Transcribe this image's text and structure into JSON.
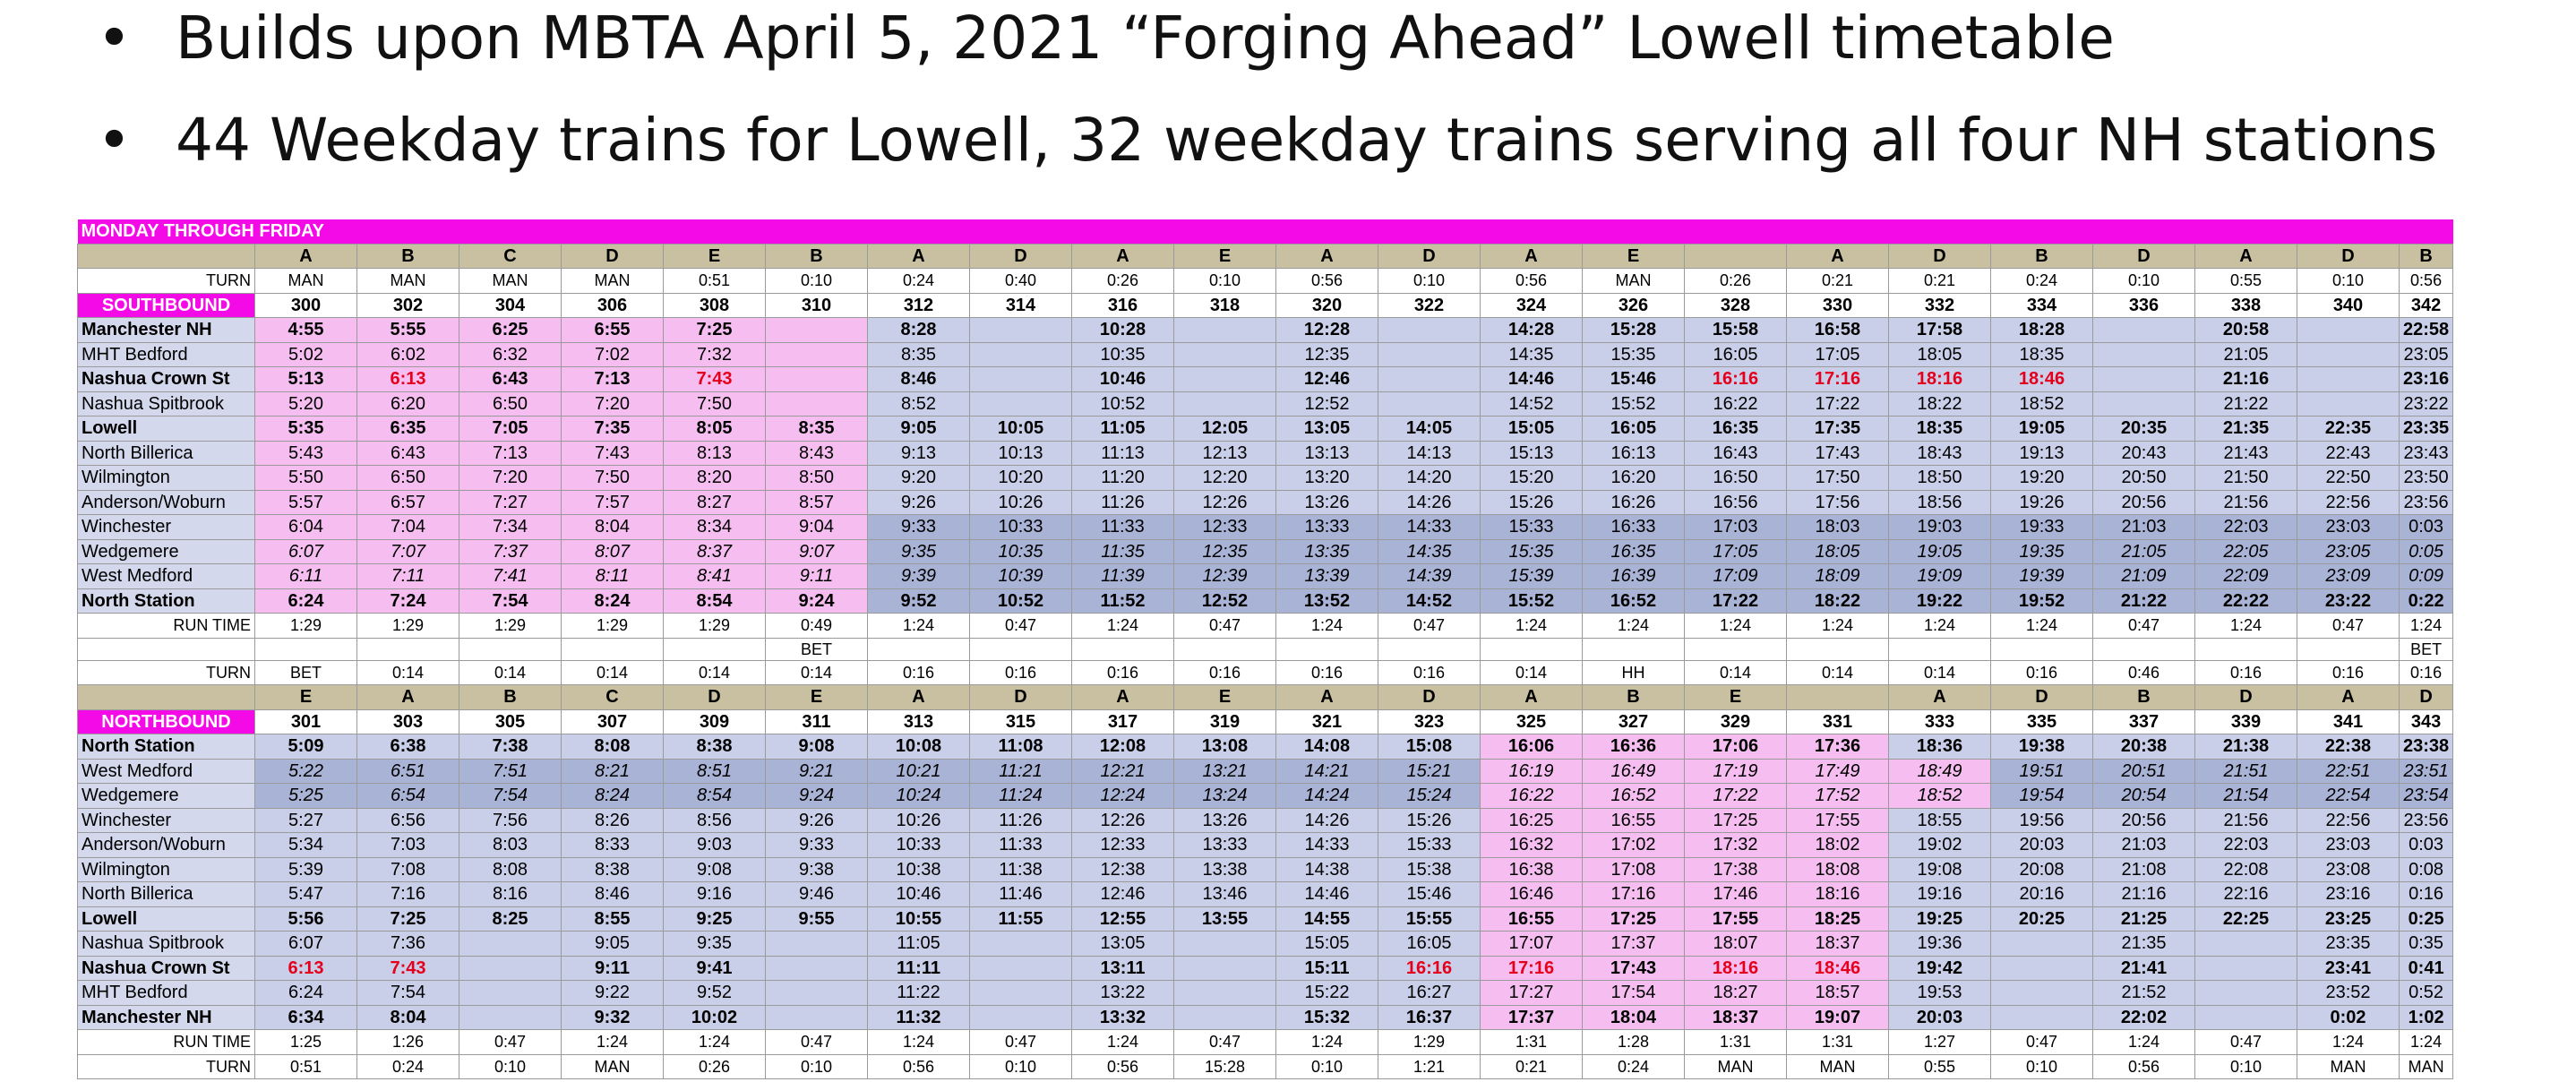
{
  "bullets": [
    {
      "symbol": "•",
      "text": "Builds upon MBTA April 5, 2021 “Forging Ahead” Lowell timetable"
    },
    {
      "symbol": "•",
      "text": "44 Weekday trains for Lowell, 32 weekday trains serving all four NH stations"
    }
  ],
  "timetable": {
    "header": "MONDAY THROUGH FRIDAY",
    "colors": {
      "banner": "#f40ae6",
      "letters": "#c8c0a0",
      "pink": "#f6bef0",
      "light_blue": "#c9cfe8",
      "blue": "#a9b3d6",
      "red_time": "#e4001c"
    },
    "rows": [
      {
        "type": "letters",
        "cells": [
          "",
          "A",
          "B",
          "C",
          "D",
          "E",
          "B",
          "A",
          "D",
          "A",
          "E",
          "A",
          "D",
          "A",
          "E",
          "",
          "A",
          "D",
          "B",
          "D",
          "A",
          "D",
          "B"
        ]
      },
      {
        "type": "turn",
        "cells": [
          "TURN",
          "MAN",
          "MAN",
          "MAN",
          "MAN",
          "0:51",
          "0:10",
          "0:24",
          "0:40",
          "0:26",
          "0:10",
          "0:56",
          "0:10",
          "0:56",
          "MAN",
          "0:26",
          "0:21",
          "0:21",
          "0:24",
          "0:10",
          "0:55",
          "0:10",
          "0:56"
        ]
      },
      {
        "type": "dir",
        "cells": [
          "SOUTHBOUND",
          "300",
          "302",
          "304",
          "306",
          "308",
          "310",
          "312",
          "314",
          "316",
          "318",
          "320",
          "322",
          "324",
          "326",
          "328",
          "330",
          "332",
          "334",
          "336",
          "338",
          "340",
          "342"
        ]
      },
      {
        "type": "st",
        "bold": true,
        "cells": [
          "Manchester NH",
          "4:55",
          "5:55",
          "6:25",
          "6:55",
          "7:25",
          "",
          "8:28",
          "",
          "10:28",
          "",
          "12:28",
          "",
          "14:28",
          "15:28",
          "15:58",
          "16:58",
          "17:58",
          "18:28",
          "",
          "20:58",
          "",
          "22:58"
        ]
      },
      {
        "type": "st",
        "cells": [
          "MHT Bedford",
          "5:02",
          "6:02",
          "6:32",
          "7:02",
          "7:32",
          "",
          "8:35",
          "",
          "10:35",
          "",
          "12:35",
          "",
          "14:35",
          "15:35",
          "16:05",
          "17:05",
          "18:05",
          "18:35",
          "",
          "21:05",
          "",
          "23:05"
        ]
      },
      {
        "type": "st",
        "bold": true,
        "cells": [
          "Nashua Crown St",
          "5:13",
          "6:13",
          "6:43",
          "7:13",
          "7:43",
          "",
          "8:46",
          "",
          "10:46",
          "",
          "12:46",
          "",
          "14:46",
          "15:46",
          "16:16",
          "17:16",
          "18:16",
          "18:46",
          "",
          "21:16",
          "",
          "23:16"
        ]
      },
      {
        "type": "st",
        "cells": [
          "Nashua Spitbrook",
          "5:20",
          "6:20",
          "6:50",
          "7:20",
          "7:50",
          "",
          "8:52",
          "",
          "10:52",
          "",
          "12:52",
          "",
          "14:52",
          "15:52",
          "16:22",
          "17:22",
          "18:22",
          "18:52",
          "",
          "21:22",
          "",
          "23:22"
        ]
      },
      {
        "type": "st",
        "bold": true,
        "cells": [
          "Lowell",
          "5:35",
          "6:35",
          "7:05",
          "7:35",
          "8:05",
          "8:35",
          "9:05",
          "10:05",
          "11:05",
          "12:05",
          "13:05",
          "14:05",
          "15:05",
          "16:05",
          "16:35",
          "17:35",
          "18:35",
          "19:05",
          "20:35",
          "21:35",
          "22:35",
          "23:35"
        ]
      },
      {
        "type": "st",
        "cells": [
          "North Billerica",
          "5:43",
          "6:43",
          "7:13",
          "7:43",
          "8:13",
          "8:43",
          "9:13",
          "10:13",
          "11:13",
          "12:13",
          "13:13",
          "14:13",
          "15:13",
          "16:13",
          "16:43",
          "17:43",
          "18:43",
          "19:13",
          "20:43",
          "21:43",
          "22:43",
          "23:43"
        ]
      },
      {
        "type": "st",
        "cells": [
          "Wilmington",
          "5:50",
          "6:50",
          "7:20",
          "7:50",
          "8:20",
          "8:50",
          "9:20",
          "10:20",
          "11:20",
          "12:20",
          "13:20",
          "14:20",
          "15:20",
          "16:20",
          "16:50",
          "17:50",
          "18:50",
          "19:20",
          "20:50",
          "21:50",
          "22:50",
          "23:50"
        ]
      },
      {
        "type": "st",
        "cells": [
          "Anderson/Woburn",
          "5:57",
          "6:57",
          "7:27",
          "7:57",
          "8:27",
          "8:57",
          "9:26",
          "10:26",
          "11:26",
          "12:26",
          "13:26",
          "14:26",
          "15:26",
          "16:26",
          "16:56",
          "17:56",
          "18:56",
          "19:26",
          "20:56",
          "21:56",
          "22:56",
          "23:56"
        ]
      },
      {
        "type": "st",
        "cells": [
          "Winchester",
          "6:04",
          "7:04",
          "7:34",
          "8:04",
          "8:34",
          "9:04",
          "9:33",
          "10:33",
          "11:33",
          "12:33",
          "13:33",
          "14:33",
          "15:33",
          "16:33",
          "17:03",
          "18:03",
          "19:03",
          "19:33",
          "21:03",
          "22:03",
          "23:03",
          "0:03"
        ]
      },
      {
        "type": "st",
        "italic": true,
        "cells": [
          "Wedgemere",
          "6:07",
          "7:07",
          "7:37",
          "8:07",
          "8:37",
          "9:07",
          "9:35",
          "10:35",
          "11:35",
          "12:35",
          "13:35",
          "14:35",
          "15:35",
          "16:35",
          "17:05",
          "18:05",
          "19:05",
          "19:35",
          "21:05",
          "22:05",
          "23:05",
          "0:05"
        ]
      },
      {
        "type": "st",
        "italic": true,
        "cells": [
          "West Medford",
          "6:11",
          "7:11",
          "7:41",
          "8:11",
          "8:41",
          "9:11",
          "9:39",
          "10:39",
          "11:39",
          "12:39",
          "13:39",
          "14:39",
          "15:39",
          "16:39",
          "17:09",
          "18:09",
          "19:09",
          "19:39",
          "21:09",
          "22:09",
          "23:09",
          "0:09"
        ]
      },
      {
        "type": "st",
        "bold": true,
        "cells": [
          "North Station",
          "6:24",
          "7:24",
          "7:54",
          "8:24",
          "8:54",
          "9:24",
          "9:52",
          "10:52",
          "11:52",
          "12:52",
          "13:52",
          "14:52",
          "15:52",
          "16:52",
          "17:22",
          "18:22",
          "19:22",
          "19:52",
          "21:22",
          "22:22",
          "23:22",
          "0:22"
        ]
      },
      {
        "type": "runtime",
        "cells": [
          "RUN TIME",
          "1:29",
          "1:29",
          "1:29",
          "1:29",
          "1:29",
          "0:49",
          "1:24",
          "0:47",
          "1:24",
          "0:47",
          "1:24",
          "0:47",
          "1:24",
          "1:24",
          "1:24",
          "1:24",
          "1:24",
          "1:24",
          "0:47",
          "1:24",
          "0:47",
          "1:24"
        ]
      },
      {
        "type": "spacer",
        "cells": [
          "",
          "",
          "",
          "",
          "",
          "",
          "BET",
          "",
          "",
          "",
          "",
          "",
          "",
          "",
          "",
          "",
          "",
          "",
          "",
          "",
          "",
          "",
          "BET"
        ]
      },
      {
        "type": "turn",
        "cells": [
          "TURN",
          "BET",
          "0:14",
          "0:14",
          "0:14",
          "0:14",
          "0:14",
          "0:16",
          "0:16",
          "0:16",
          "0:16",
          "0:16",
          "0:16",
          "0:14",
          "HH",
          "0:14",
          "0:14",
          "0:14",
          "0:16",
          "0:46",
          "0:16",
          "0:16",
          "0:16"
        ]
      },
      {
        "type": "letters",
        "cells": [
          "",
          "E",
          "A",
          "B",
          "C",
          "D",
          "E",
          "A",
          "D",
          "A",
          "E",
          "A",
          "D",
          "A",
          "B",
          "E",
          "",
          "A",
          "D",
          "B",
          "D",
          "A",
          "D"
        ]
      },
      {
        "type": "dir",
        "cells": [
          "NORTHBOUND",
          "301",
          "303",
          "305",
          "307",
          "309",
          "311",
          "313",
          "315",
          "317",
          "319",
          "321",
          "323",
          "325",
          "327",
          "329",
          "331",
          "333",
          "335",
          "337",
          "339",
          "341",
          "343"
        ]
      },
      {
        "type": "st",
        "bold": true,
        "cells": [
          "North Station",
          "5:09",
          "6:38",
          "7:38",
          "8:08",
          "8:38",
          "9:08",
          "10:08",
          "11:08",
          "12:08",
          "13:08",
          "14:08",
          "15:08",
          "16:06",
          "16:36",
          "17:06",
          "17:36",
          "18:36",
          "19:38",
          "20:38",
          "21:38",
          "22:38",
          "23:38"
        ]
      },
      {
        "type": "st",
        "italic": true,
        "cells": [
          "West Medford",
          "5:22",
          "6:51",
          "7:51",
          "8:21",
          "8:51",
          "9:21",
          "10:21",
          "11:21",
          "12:21",
          "13:21",
          "14:21",
          "15:21",
          "16:19",
          "16:49",
          "17:19",
          "17:49",
          "18:49",
          "19:51",
          "20:51",
          "21:51",
          "22:51",
          "23:51"
        ]
      },
      {
        "type": "st",
        "italic": true,
        "cells": [
          "Wedgemere",
          "5:25",
          "6:54",
          "7:54",
          "8:24",
          "8:54",
          "9:24",
          "10:24",
          "11:24",
          "12:24",
          "13:24",
          "14:24",
          "15:24",
          "16:22",
          "16:52",
          "17:22",
          "17:52",
          "18:52",
          "19:54",
          "20:54",
          "21:54",
          "22:54",
          "23:54"
        ]
      },
      {
        "type": "st",
        "cells": [
          "Winchester",
          "5:27",
          "6:56",
          "7:56",
          "8:26",
          "8:56",
          "9:26",
          "10:26",
          "11:26",
          "12:26",
          "13:26",
          "14:26",
          "15:26",
          "16:25",
          "16:55",
          "17:25",
          "17:55",
          "18:55",
          "19:56",
          "20:56",
          "21:56",
          "22:56",
          "23:56"
        ]
      },
      {
        "type": "st",
        "cells": [
          "Anderson/Woburn",
          "5:34",
          "7:03",
          "8:03",
          "8:33",
          "9:03",
          "9:33",
          "10:33",
          "11:33",
          "12:33",
          "13:33",
          "14:33",
          "15:33",
          "16:32",
          "17:02",
          "17:32",
          "18:02",
          "19:02",
          "20:03",
          "21:03",
          "22:03",
          "23:03",
          "0:03"
        ]
      },
      {
        "type": "st",
        "cells": [
          "Wilmington",
          "5:39",
          "7:08",
          "8:08",
          "8:38",
          "9:08",
          "9:38",
          "10:38",
          "11:38",
          "12:38",
          "13:38",
          "14:38",
          "15:38",
          "16:38",
          "17:08",
          "17:38",
          "18:08",
          "19:08",
          "20:08",
          "21:08",
          "22:08",
          "23:08",
          "0:08"
        ]
      },
      {
        "type": "st",
        "cells": [
          "North Billerica",
          "5:47",
          "7:16",
          "8:16",
          "8:46",
          "9:16",
          "9:46",
          "10:46",
          "11:46",
          "12:46",
          "13:46",
          "14:46",
          "15:46",
          "16:46",
          "17:16",
          "17:46",
          "18:16",
          "19:16",
          "20:16",
          "21:16",
          "22:16",
          "23:16",
          "0:16"
        ]
      },
      {
        "type": "st",
        "bold": true,
        "cells": [
          "Lowell",
          "5:56",
          "7:25",
          "8:25",
          "8:55",
          "9:25",
          "9:55",
          "10:55",
          "11:55",
          "12:55",
          "13:55",
          "14:55",
          "15:55",
          "16:55",
          "17:25",
          "17:55",
          "18:25",
          "19:25",
          "20:25",
          "21:25",
          "22:25",
          "23:25",
          "0:25"
        ]
      },
      {
        "type": "st",
        "cells": [
          "Nashua Spitbrook",
          "6:07",
          "7:36",
          "",
          "9:05",
          "9:35",
          "",
          "11:05",
          "",
          "13:05",
          "",
          "15:05",
          "16:05",
          "17:07",
          "17:37",
          "18:07",
          "18:37",
          "19:36",
          "",
          "21:35",
          "",
          "23:35",
          "0:35"
        ]
      },
      {
        "type": "st",
        "bold": true,
        "cells": [
          "Nashua Crown St",
          "6:13",
          "7:43",
          "",
          "9:11",
          "9:41",
          "",
          "11:11",
          "",
          "13:11",
          "",
          "15:11",
          "16:16",
          "17:16",
          "17:43",
          "18:16",
          "18:46",
          "19:42",
          "",
          "21:41",
          "",
          "23:41",
          "0:41"
        ]
      },
      {
        "type": "st",
        "cells": [
          "MHT Bedford",
          "6:24",
          "7:54",
          "",
          "9:22",
          "9:52",
          "",
          "11:22",
          "",
          "13:22",
          "",
          "15:22",
          "16:27",
          "17:27",
          "17:54",
          "18:27",
          "18:57",
          "19:53",
          "",
          "21:52",
          "",
          "23:52",
          "0:52"
        ]
      },
      {
        "type": "st",
        "bold": true,
        "cells": [
          "Manchester NH",
          "6:34",
          "8:04",
          "",
          "9:32",
          "10:02",
          "",
          "11:32",
          "",
          "13:32",
          "",
          "15:32",
          "16:37",
          "17:37",
          "18:04",
          "18:37",
          "19:07",
          "20:03",
          "",
          "22:02",
          "",
          "0:02",
          "1:02"
        ]
      },
      {
        "type": "runtime",
        "cells": [
          "RUN TIME",
          "1:25",
          "1:26",
          "0:47",
          "1:24",
          "1:24",
          "0:47",
          "1:24",
          "0:47",
          "1:24",
          "0:47",
          "1:24",
          "1:29",
          "1:31",
          "1:28",
          "1:31",
          "1:31",
          "1:27",
          "0:47",
          "1:24",
          "0:47",
          "1:24",
          "1:24"
        ]
      },
      {
        "type": "turn",
        "cells": [
          "TURN",
          "0:51",
          "0:24",
          "0:10",
          "MAN",
          "0:26",
          "0:10",
          "0:56",
          "0:10",
          "0:56",
          "15:28",
          "0:10",
          "1:21",
          "0:21",
          "0:24",
          "MAN",
          "MAN",
          "0:55",
          "0:10",
          "0:56",
          "0:10",
          "MAN",
          "MAN"
        ]
      }
    ]
  }
}
